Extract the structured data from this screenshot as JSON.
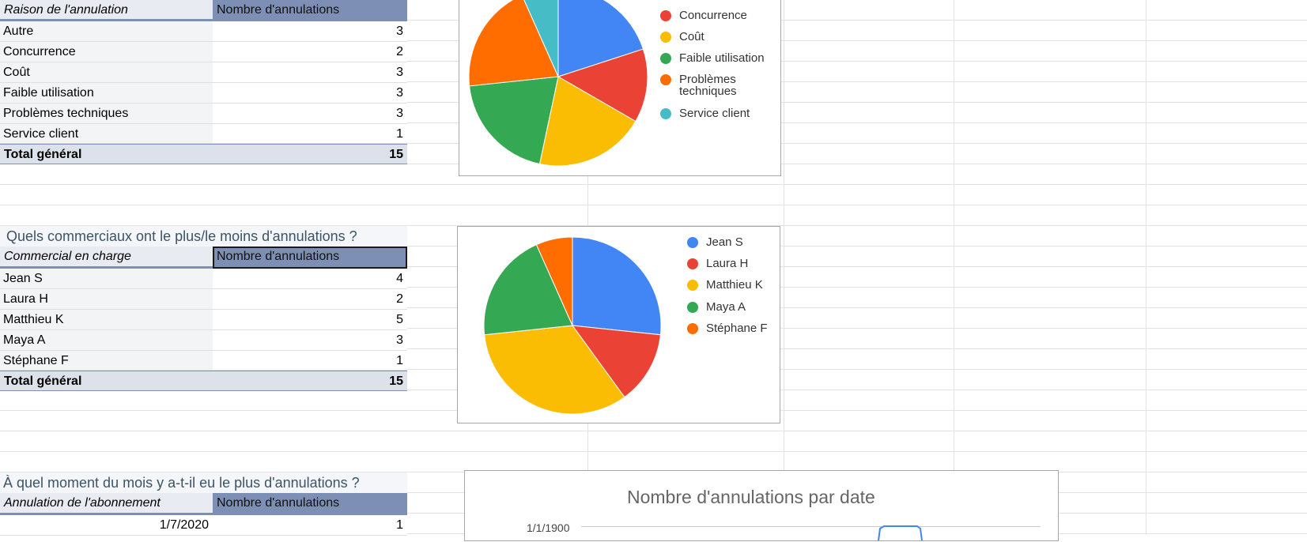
{
  "table1": {
    "header_label": "Raison de l'annulation",
    "header_value": "Nombre d'annulations",
    "rows": [
      {
        "label": "Autre",
        "value": "3"
      },
      {
        "label": "Concurrence",
        "value": "2"
      },
      {
        "label": "Coût",
        "value": "3"
      },
      {
        "label": "Faible utilisation",
        "value": "3"
      },
      {
        "label": "Problèmes techniques",
        "value": "3"
      },
      {
        "label": "Service client",
        "value": "1"
      }
    ],
    "total_label": "Total général",
    "total_value": "15"
  },
  "table2": {
    "title": "Quels commerciaux ont le plus/le moins d'annulations ?",
    "header_label": "Commercial en charge",
    "header_value": "Nombre d'annulations",
    "rows": [
      {
        "label": "Jean S",
        "value": "4"
      },
      {
        "label": "Laura H",
        "value": "2"
      },
      {
        "label": "Matthieu K",
        "value": "5"
      },
      {
        "label": "Maya A",
        "value": "3"
      },
      {
        "label": "Stéphane F",
        "value": "1"
      }
    ],
    "total_label": "Total général",
    "total_value": "15"
  },
  "table3": {
    "title": "À quel moment du mois y a-t-il eu le plus d'annulations ?",
    "header_label": "Annulation de l'abonnement",
    "header_value": "Nombre d'annulations",
    "rows": [
      {
        "label": "1/7/2020",
        "value": "1"
      }
    ]
  },
  "chart_data": [
    {
      "type": "pie",
      "categories": [
        "Autre",
        "Concurrence",
        "Coût",
        "Faible utilisation",
        "Problèmes techniques",
        "Service client"
      ],
      "values": [
        3,
        2,
        3,
        3,
        3,
        1
      ],
      "colors": [
        "#4285f4",
        "#ea4335",
        "#fbbc04",
        "#34a853",
        "#ff6d01",
        "#46bdc6"
      ],
      "legend": {
        "visible_entries": [
          "Concurrence",
          "Coût",
          "Faible utilisation",
          "Problèmes techniques",
          "Service client"
        ],
        "placement": "right"
      }
    },
    {
      "type": "pie",
      "categories": [
        "Jean S",
        "Laura H",
        "Matthieu K",
        "Maya A",
        "Stéphane F"
      ],
      "values": [
        4,
        2,
        5,
        3,
        1
      ],
      "colors": [
        "#4285f4",
        "#ea4335",
        "#fbbc04",
        "#34a853",
        "#ff6d01"
      ],
      "legend": {
        "entries": [
          "Jean S",
          "Laura H",
          "Matthieu K",
          "Maya A",
          "Stéphane F"
        ],
        "placement": "right"
      }
    },
    {
      "type": "line",
      "title": "Nombre d'annulations par date",
      "ytick_labels": [
        "1/1/1900"
      ],
      "line_color": "#4285f4"
    }
  ]
}
